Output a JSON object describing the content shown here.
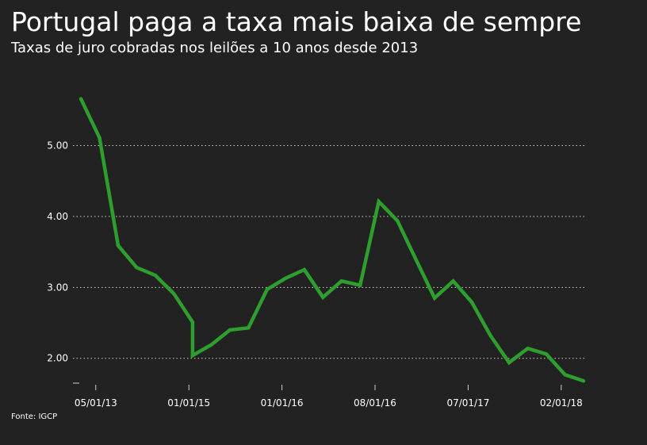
{
  "title": "Portugal paga a taxa mais baixa de sempre",
  "subtitle": "Taxas de juro cobradas nos leilões a 10 anos desde 2013",
  "source": "Fonte: IGCP",
  "colors": {
    "background": "#222222",
    "line": "#2e9e2e",
    "grid": "#cfcfcf",
    "text": "#ffffff"
  },
  "chart_data": {
    "type": "line",
    "title": "Portugal paga a taxa mais baixa de sempre",
    "subtitle": "Taxas de juro cobradas nos leilões a 10 anos desde 2013",
    "xlabel": "",
    "ylabel": "",
    "ylim": [
      1.65,
      5.8
    ],
    "yticks": [
      2.0,
      3.0,
      4.0,
      5.0
    ],
    "ytick_labels": [
      "2.00",
      "3.00",
      "4.00",
      "5.00"
    ],
    "xtick_labels": [
      "05/01/13",
      "01/01/15",
      "01/01/16",
      "08/01/16",
      "07/01/17",
      "02/01/18"
    ],
    "xtick_positions": [
      0.8,
      5.8,
      10.8,
      15.8,
      20.8,
      25.8
    ],
    "grid": "horizontal dotted",
    "legend": "none",
    "series": [
      {
        "values": [
          5.66,
          5.11,
          3.59,
          3.28,
          3.17,
          2.91,
          2.51,
          2.04,
          2.19,
          2.4,
          2.43,
          2.97,
          3.13,
          3.25,
          2.86,
          3.09,
          3.03,
          4.21,
          3.94,
          3.39,
          2.85,
          3.09,
          2.79,
          2.32,
          1.94,
          2.14,
          2.06,
          1.77,
          1.68
        ]
      }
    ],
    "x_index": [
      0,
      1,
      2,
      3,
      4,
      5,
      6,
      6,
      7,
      8,
      9,
      10,
      11,
      12,
      13,
      14,
      15,
      16,
      17,
      18,
      19,
      20,
      21,
      22,
      23,
      24,
      25,
      26,
      27
    ]
  }
}
